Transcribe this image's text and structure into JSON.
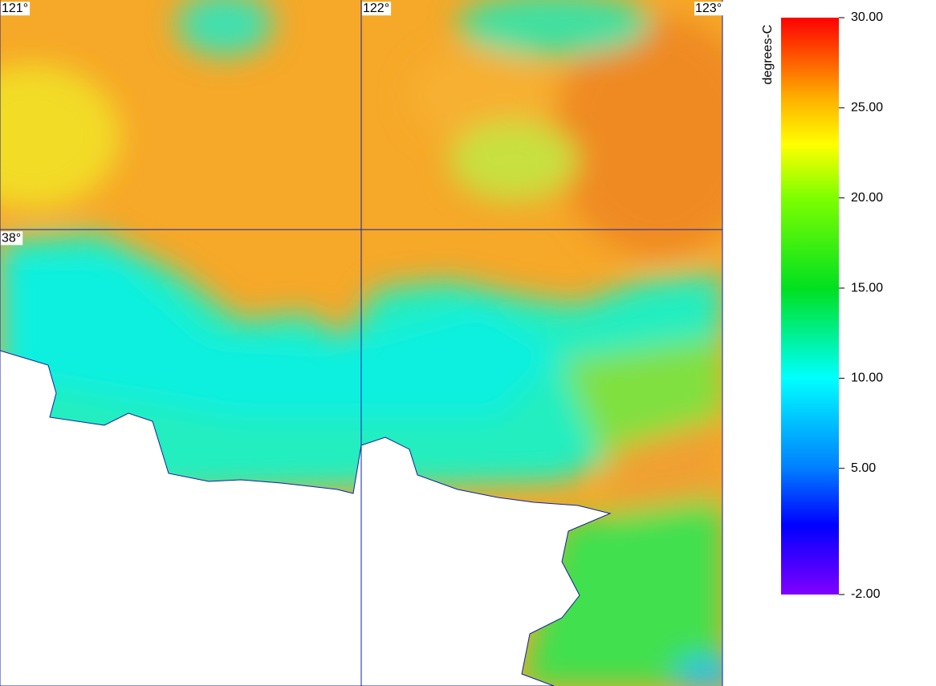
{
  "map": {
    "graticule": {
      "lon": [
        {
          "value": 121,
          "label": "121°"
        },
        {
          "value": 122,
          "label": "122°"
        },
        {
          "value": 123,
          "label": "123°"
        }
      ],
      "lat": [
        {
          "value": 38,
          "label": "38°"
        }
      ],
      "lon_lim": [
        121,
        123
      ],
      "lat_lim": [
        38.503,
        37.0
      ]
    },
    "colorbar": {
      "label": "degrees-C",
      "lim": [
        -2,
        30
      ],
      "ticks": [
        {
          "value": 30,
          "label": "30.00"
        },
        {
          "value": 25,
          "label": "25.00"
        },
        {
          "value": 20,
          "label": "20.00"
        },
        {
          "value": 15,
          "label": "15.00"
        },
        {
          "value": 10,
          "label": "10.00"
        },
        {
          "value": 5,
          "label": "5.00"
        },
        {
          "value": -2,
          "label": "-2.00"
        }
      ]
    }
  }
}
